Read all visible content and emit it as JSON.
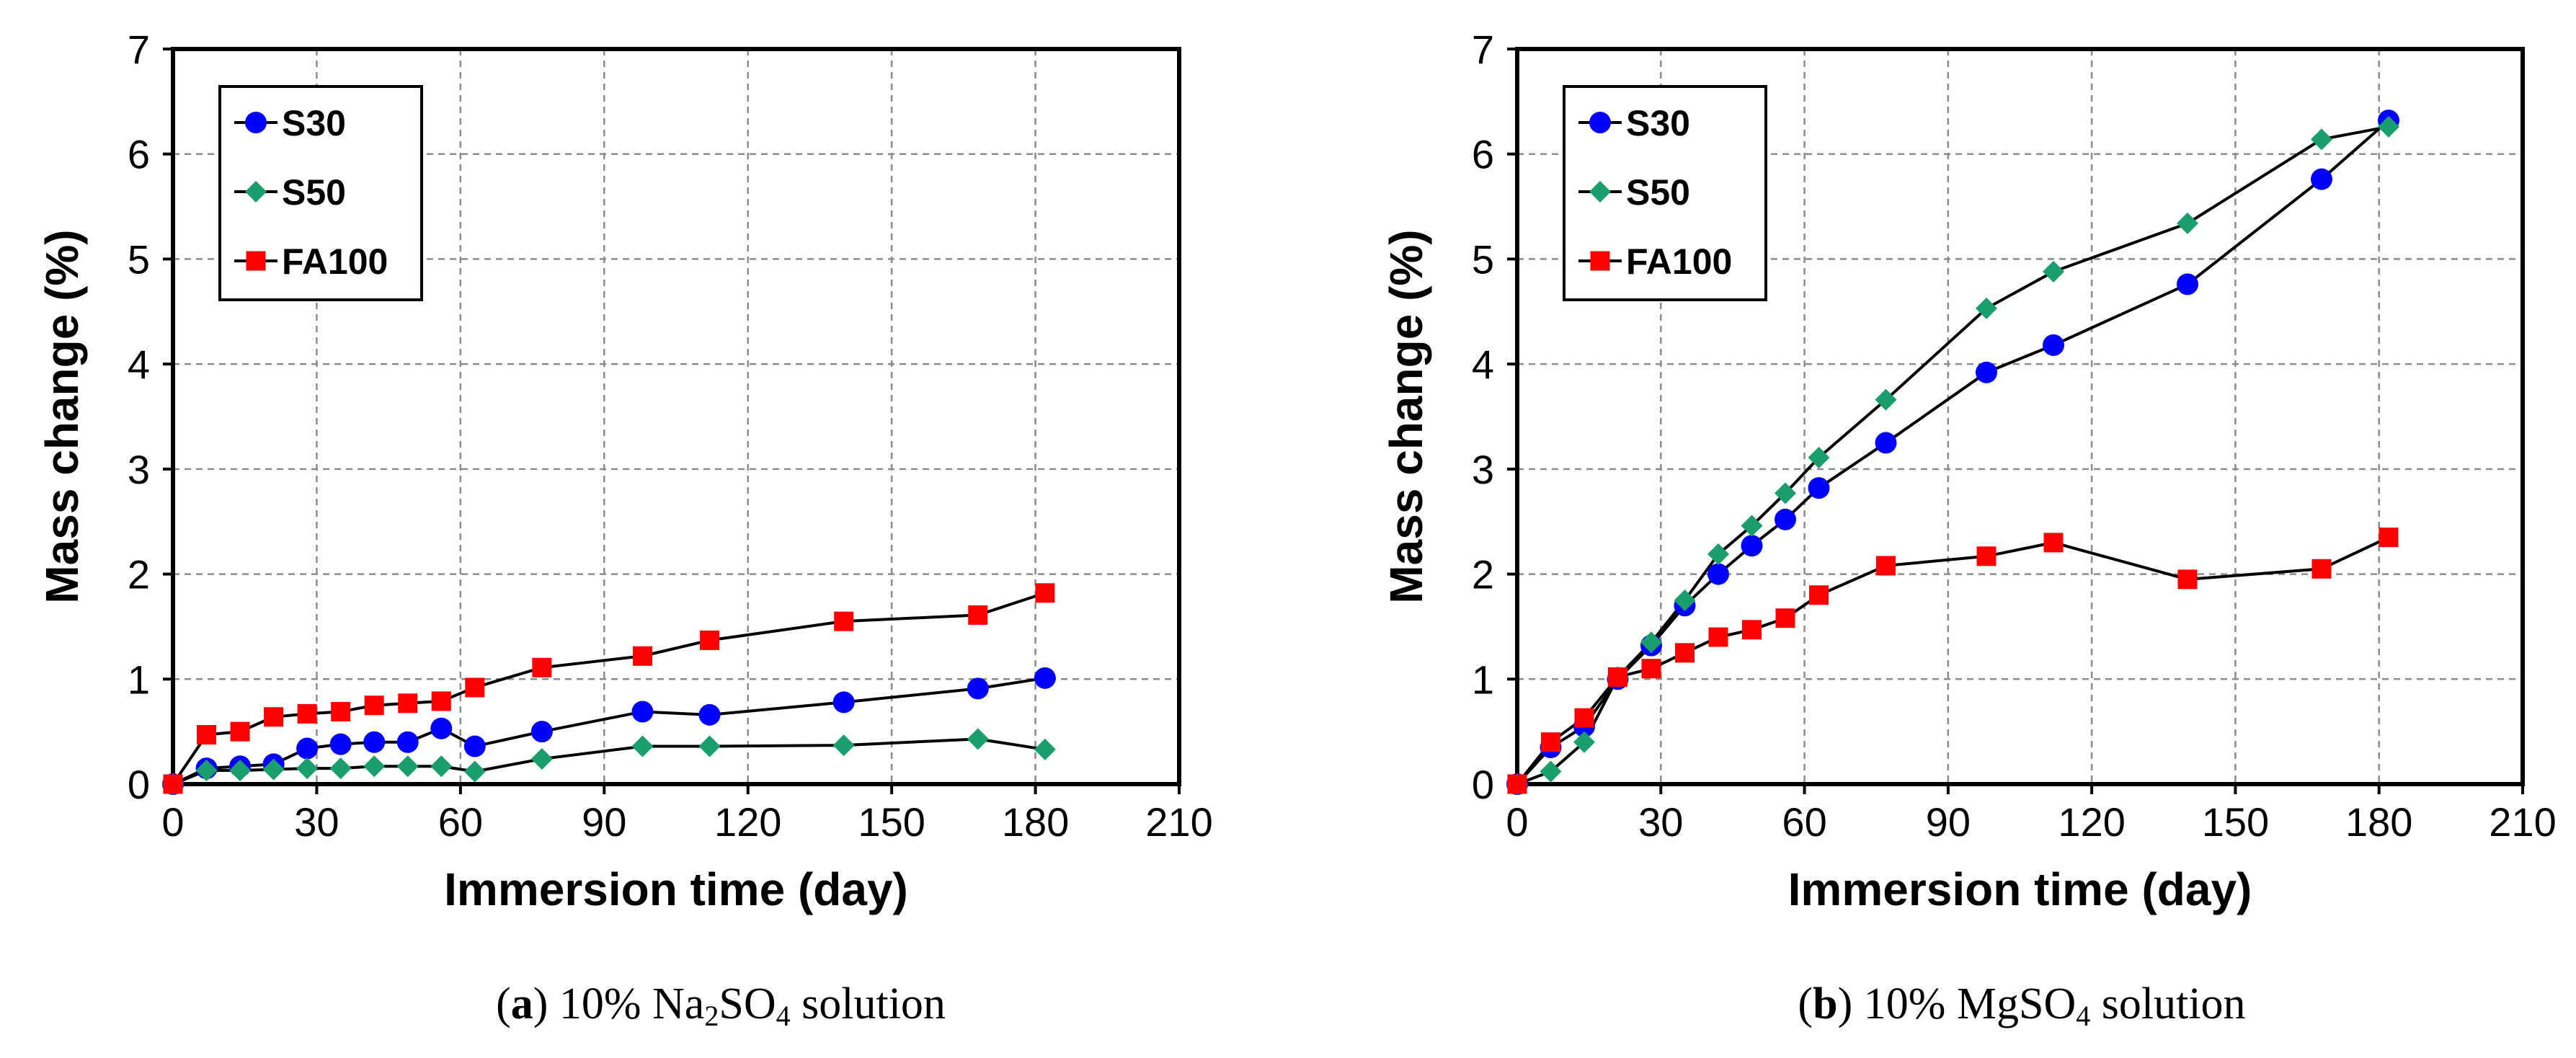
{
  "chart_data": [
    {
      "type": "line",
      "xlabel": "Immersion time (day)",
      "ylabel": "Mass change (%)",
      "xlim": [
        0,
        210
      ],
      "ylim": [
        0,
        7
      ],
      "xticks": [
        "0",
        "30",
        "60",
        "90",
        "120",
        "150",
        "180",
        "210"
      ],
      "yticks": [
        "0",
        "1",
        "2",
        "3",
        "4",
        "5",
        "6",
        "7"
      ],
      "grid": true,
      "legend_position": "top-left",
      "caption": {
        "letter": "a",
        "open": "(",
        "close": ")",
        "prefix": " 10% Na",
        "sub1": "2",
        "mid": "SO",
        "sub2": "4",
        "suffix": " solution"
      },
      "series": [
        {
          "name": "S30",
          "color": "#0000ff",
          "marker": "circle",
          "x": [
            0,
            7,
            14,
            21,
            28,
            35,
            42,
            49,
            56,
            63,
            77,
            98,
            112,
            140,
            168,
            182
          ],
          "y": [
            0.0,
            0.15,
            0.17,
            0.19,
            0.34,
            0.38,
            0.4,
            0.4,
            0.53,
            0.36,
            0.5,
            0.69,
            0.66,
            0.78,
            0.91,
            1.01
          ]
        },
        {
          "name": "S50",
          "color": "#1a9e6e",
          "marker": "diamond",
          "x": [
            0,
            7,
            14,
            21,
            28,
            35,
            42,
            49,
            56,
            63,
            77,
            98,
            112,
            140,
            168,
            182
          ],
          "y": [
            0.0,
            0.13,
            0.13,
            0.14,
            0.15,
            0.15,
            0.17,
            0.17,
            0.17,
            0.12,
            0.24,
            0.36,
            0.36,
            0.37,
            0.43,
            0.33
          ]
        },
        {
          "name": "FA100",
          "color": "#ff0000",
          "marker": "square",
          "x": [
            0,
            7,
            14,
            21,
            28,
            35,
            42,
            49,
            56,
            63,
            77,
            98,
            112,
            140,
            168,
            182
          ],
          "y": [
            0.0,
            0.47,
            0.5,
            0.64,
            0.67,
            0.69,
            0.75,
            0.77,
            0.79,
            0.92,
            1.11,
            1.22,
            1.37,
            1.55,
            1.61,
            1.82
          ]
        }
      ]
    },
    {
      "type": "line",
      "xlabel": "Immersion time (day)",
      "ylabel": "Mass change (%)",
      "xlim": [
        0,
        210
      ],
      "ylim": [
        0,
        7
      ],
      "xticks": [
        "0",
        "30",
        "60",
        "90",
        "120",
        "150",
        "180",
        "210"
      ],
      "yticks": [
        "0",
        "1",
        "2",
        "3",
        "4",
        "5",
        "6",
        "7"
      ],
      "grid": true,
      "legend_position": "top-left",
      "caption": {
        "letter": "b",
        "open": "(",
        "close": ")",
        "prefix": " 10% MgSO",
        "sub1": "4",
        "mid": "",
        "sub2": "",
        "suffix": " solution"
      },
      "series": [
        {
          "name": "S30",
          "color": "#0000ff",
          "marker": "circle",
          "x": [
            0,
            7,
            14,
            21,
            28,
            35,
            42,
            49,
            56,
            63,
            77,
            98,
            112,
            140,
            168,
            182
          ],
          "y": [
            0.0,
            0.35,
            0.55,
            1.0,
            1.32,
            1.7,
            2.0,
            2.27,
            2.52,
            2.82,
            3.25,
            3.92,
            4.18,
            4.76,
            5.76,
            6.32
          ]
        },
        {
          "name": "S50",
          "color": "#1a9e6e",
          "marker": "diamond",
          "x": [
            0,
            7,
            14,
            21,
            28,
            35,
            42,
            49,
            56,
            63,
            77,
            98,
            112,
            140,
            168,
            182
          ],
          "y": [
            0.0,
            0.12,
            0.4,
            1.02,
            1.35,
            1.75,
            2.19,
            2.46,
            2.77,
            3.11,
            3.66,
            4.53,
            4.88,
            5.34,
            6.14,
            6.26
          ]
        },
        {
          "name": "FA100",
          "color": "#ff0000",
          "marker": "square",
          "x": [
            0,
            7,
            14,
            21,
            28,
            35,
            42,
            49,
            56,
            63,
            77,
            98,
            112,
            140,
            168,
            182
          ],
          "y": [
            0.0,
            0.4,
            0.63,
            1.02,
            1.1,
            1.25,
            1.4,
            1.47,
            1.58,
            1.8,
            2.08,
            2.17,
            2.3,
            1.95,
            2.05,
            2.35
          ]
        }
      ]
    }
  ]
}
